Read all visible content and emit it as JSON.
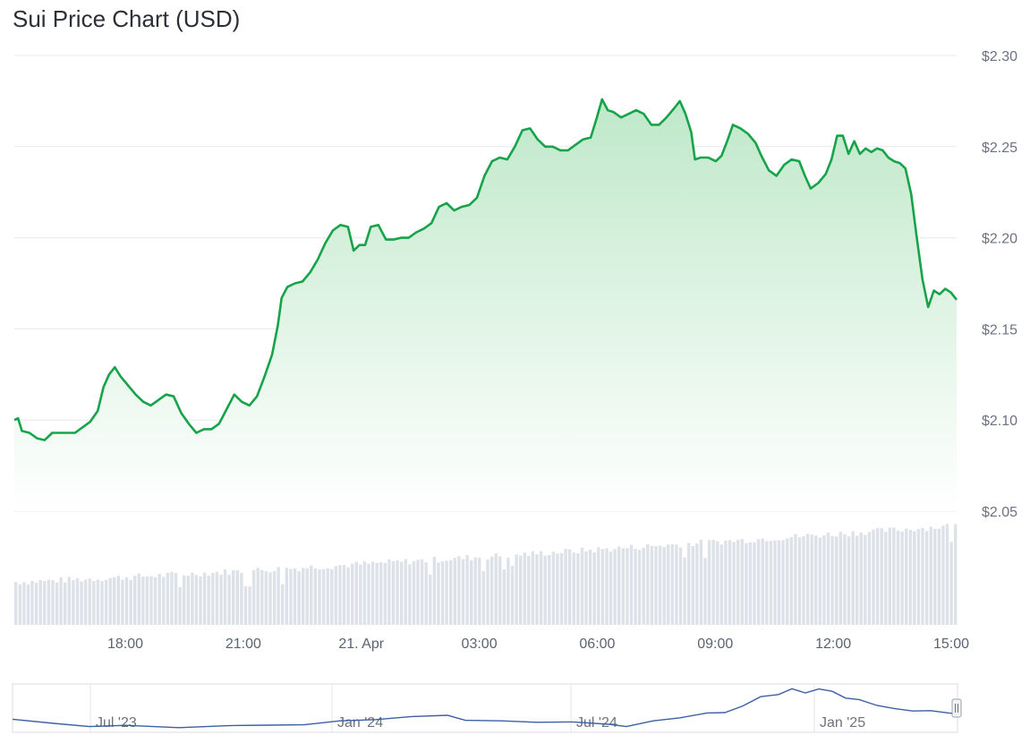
{
  "title": "Sui Price Chart (USD)",
  "chart_data": {
    "type": "area",
    "title": "Sui Price Chart (USD)",
    "currency": "USD",
    "ylim": [
      2.05,
      2.3
    ],
    "y_ticks": [
      "$2.30",
      "$2.25",
      "$2.20",
      "$2.15",
      "$2.10",
      "$2.05"
    ],
    "y_tick_values": [
      2.3,
      2.25,
      2.2,
      2.15,
      2.1,
      2.05
    ],
    "x_ticks": [
      "18:00",
      "21:00",
      "21. Apr",
      "03:00",
      "06:00",
      "09:00",
      "12:00",
      "15:00"
    ],
    "x_tick_hours": [
      18,
      21,
      24,
      27,
      30,
      33,
      36,
      39
    ],
    "x_start_hour": 15.2,
    "x_end_hour": 39.1,
    "series": [
      {
        "points": [
          [
            15.2,
            2.1
          ],
          [
            15.3,
            2.101
          ],
          [
            15.4,
            2.094
          ],
          [
            15.6,
            2.093
          ],
          [
            15.8,
            2.09
          ],
          [
            16.0,
            2.089
          ],
          [
            16.2,
            2.093
          ],
          [
            16.5,
            2.093
          ],
          [
            16.8,
            2.093
          ],
          [
            17.0,
            2.096
          ],
          [
            17.2,
            2.099
          ],
          [
            17.4,
            2.105
          ],
          [
            17.55,
            2.118
          ],
          [
            17.7,
            2.125
          ],
          [
            17.85,
            2.129
          ],
          [
            18.0,
            2.124
          ],
          [
            18.2,
            2.119
          ],
          [
            18.4,
            2.114
          ],
          [
            18.6,
            2.11
          ],
          [
            18.8,
            2.108
          ],
          [
            19.0,
            2.111
          ],
          [
            19.2,
            2.114
          ],
          [
            19.4,
            2.113
          ],
          [
            19.6,
            2.104
          ],
          [
            19.8,
            2.098
          ],
          [
            20.0,
            2.093
          ],
          [
            20.2,
            2.095
          ],
          [
            20.4,
            2.095
          ],
          [
            20.6,
            2.098
          ],
          [
            20.8,
            2.106
          ],
          [
            21.0,
            2.114
          ],
          [
            21.2,
            2.11
          ],
          [
            21.4,
            2.108
          ],
          [
            21.6,
            2.113
          ],
          [
            21.8,
            2.124
          ],
          [
            22.0,
            2.136
          ],
          [
            22.15,
            2.152
          ],
          [
            22.25,
            2.167
          ],
          [
            22.4,
            2.173
          ],
          [
            22.6,
            2.175
          ],
          [
            22.8,
            2.176
          ],
          [
            23.0,
            2.181
          ],
          [
            23.2,
            2.188
          ],
          [
            23.4,
            2.197
          ],
          [
            23.6,
            2.204
          ],
          [
            23.8,
            2.207
          ],
          [
            24.0,
            2.206
          ],
          [
            24.15,
            2.193
          ],
          [
            24.3,
            2.196
          ],
          [
            24.45,
            2.196
          ],
          [
            24.6,
            2.206
          ],
          [
            24.8,
            2.207
          ],
          [
            25.0,
            2.199
          ],
          [
            25.2,
            2.199
          ],
          [
            25.4,
            2.2
          ],
          [
            25.6,
            2.2
          ],
          [
            25.8,
            2.203
          ],
          [
            26.0,
            2.205
          ],
          [
            26.2,
            2.208
          ],
          [
            26.4,
            2.217
          ],
          [
            26.6,
            2.219
          ],
          [
            26.8,
            2.215
          ],
          [
            27.0,
            2.217
          ],
          [
            27.2,
            2.218
          ],
          [
            27.4,
            2.222
          ],
          [
            27.6,
            2.234
          ],
          [
            27.8,
            2.242
          ],
          [
            28.0,
            2.244
          ],
          [
            28.2,
            2.243
          ],
          [
            28.4,
            2.25
          ],
          [
            28.6,
            2.259
          ],
          [
            28.8,
            2.26
          ],
          [
            29.0,
            2.254
          ],
          [
            29.2,
            2.25
          ],
          [
            29.4,
            2.25
          ],
          [
            29.6,
            2.248
          ],
          [
            29.8,
            2.248
          ],
          [
            30.0,
            2.251
          ],
          [
            30.2,
            2.254
          ],
          [
            30.4,
            2.255
          ],
          [
            30.55,
            2.265
          ],
          [
            30.7,
            2.276
          ],
          [
            30.85,
            2.27
          ],
          [
            31.0,
            2.269
          ],
          [
            31.2,
            2.266
          ],
          [
            31.4,
            2.268
          ],
          [
            31.6,
            2.27
          ],
          [
            31.8,
            2.268
          ],
          [
            32.0,
            2.262
          ],
          [
            32.2,
            2.262
          ],
          [
            32.4,
            2.266
          ],
          [
            32.6,
            2.271
          ],
          [
            32.75,
            2.275
          ],
          [
            32.9,
            2.268
          ],
          [
            33.05,
            2.258
          ],
          [
            33.15,
            2.243
          ],
          [
            33.3,
            2.244
          ],
          [
            33.5,
            2.244
          ],
          [
            33.7,
            2.242
          ],
          [
            33.85,
            2.245
          ],
          [
            34.0,
            2.253
          ],
          [
            34.15,
            2.262
          ],
          [
            34.35,
            2.26
          ],
          [
            34.55,
            2.257
          ],
          [
            34.75,
            2.252
          ],
          [
            34.9,
            2.245
          ],
          [
            35.1,
            2.237
          ],
          [
            35.3,
            2.234
          ],
          [
            35.5,
            2.24
          ],
          [
            35.7,
            2.243
          ],
          [
            35.9,
            2.242
          ],
          [
            36.05,
            2.234
          ],
          [
            36.2,
            2.227
          ],
          [
            36.4,
            2.23
          ],
          [
            36.6,
            2.235
          ],
          [
            36.75,
            2.243
          ],
          [
            36.9,
            2.256
          ],
          [
            37.05,
            2.256
          ],
          [
            37.2,
            2.246
          ],
          [
            37.35,
            2.253
          ],
          [
            37.5,
            2.246
          ],
          [
            37.65,
            2.249
          ],
          [
            37.8,
            2.247
          ],
          [
            37.95,
            2.249
          ],
          [
            38.1,
            2.248
          ],
          [
            38.25,
            2.244
          ],
          [
            38.4,
            2.242
          ],
          [
            38.55,
            2.241
          ],
          [
            38.7,
            2.238
          ],
          [
            38.85,
            2.224
          ],
          [
            39.0,
            2.2
          ],
          [
            39.15,
            2.177
          ],
          [
            39.3,
            2.162
          ],
          [
            39.45,
            2.171
          ],
          [
            39.6,
            2.169
          ],
          [
            39.75,
            2.172
          ],
          [
            39.9,
            2.17
          ],
          [
            40.05,
            2.166
          ]
        ]
      }
    ],
    "volume": {
      "relative_levels_start_end": [
        0.39,
        0.9
      ]
    },
    "navigator": {
      "labels": [
        "Jul '23",
        "Jan '24",
        "Jul '24",
        "Jan '25"
      ]
    },
    "colors": {
      "line": "#16a34a",
      "area_top": "#bfe8c9",
      "grid": "#e6e8eb",
      "volume": "#dde2e8",
      "navigator_line": "#3d5fa3"
    }
  }
}
